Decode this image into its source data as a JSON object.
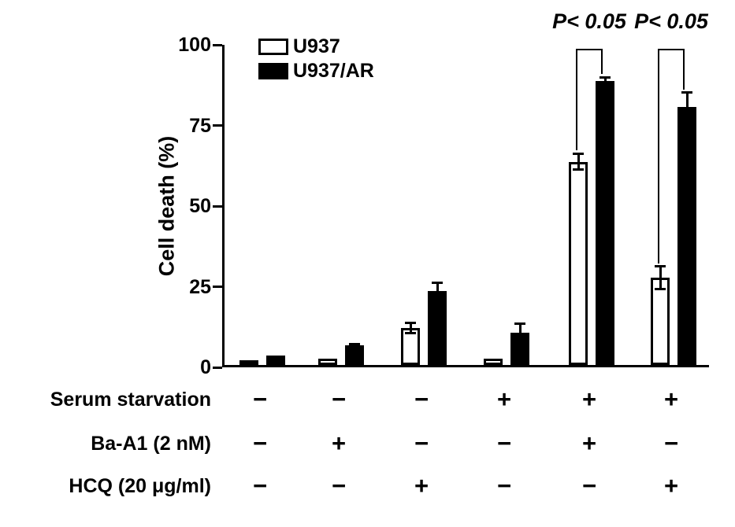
{
  "figure": {
    "background": "#ffffff",
    "axis_color": "#000000"
  },
  "chart_data": {
    "type": "bar",
    "title": "",
    "xlabel": "",
    "ylabel": "Cell death (%)",
    "ylim": [
      0,
      100
    ],
    "yticks": [
      0,
      25,
      50,
      75,
      100
    ],
    "grid": false,
    "legend_position": "top-left",
    "groups": 6,
    "series": [
      {
        "name": "U937",
        "color": "#ffffff",
        "values": [
          1.5,
          2,
          11.5,
          2,
          63,
          27
        ],
        "errors": [
          0,
          0,
          1.5,
          0,
          2.5,
          3.5
        ]
      },
      {
        "name": "U937/AR",
        "color": "#000000",
        "values": [
          3,
          6,
          23,
          10,
          88,
          80
        ],
        "errors": [
          0,
          0.5,
          2.5,
          2.8,
          1.2,
          4.5
        ]
      }
    ],
    "condition_rows": [
      {
        "label": "Serum starvation",
        "signs": [
          "−",
          "−",
          "−",
          "+",
          "+",
          "+"
        ]
      },
      {
        "label": "Ba-A1 (2 nM)",
        "signs": [
          "−",
          "+",
          "−",
          "−",
          "+",
          "−"
        ]
      },
      {
        "label": "HCQ (20 μg/ml)",
        "signs": [
          "−",
          "−",
          "+",
          "−",
          "−",
          "+"
        ]
      }
    ],
    "annotations": [
      {
        "text": "P< 0.05",
        "group_index": 4
      },
      {
        "text": "P< 0.05",
        "group_index": 5
      }
    ]
  }
}
